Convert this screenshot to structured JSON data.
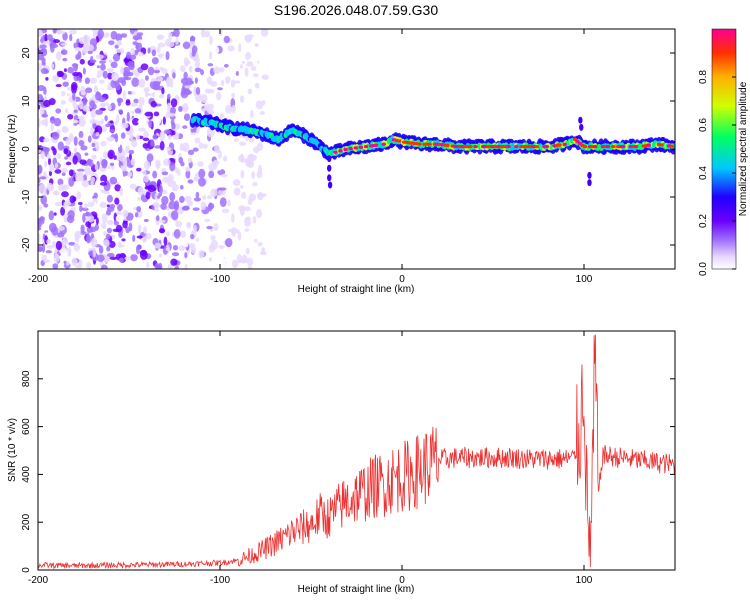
{
  "title": "S196.2026.048.07.59.G30",
  "chart_data": [
    {
      "type": "heatmap",
      "title": "S196.2026.048.07.59.G30",
      "xlabel": "Height of straight line (km)",
      "ylabel": "Frequency (Hz)",
      "xlim": [
        -200,
        150
      ],
      "ylim": [
        -25,
        25
      ],
      "xticks": [
        -200,
        -100,
        0,
        100
      ],
      "xtick_labels": [
        "-200",
        "-100",
        "0",
        "100"
      ],
      "yticks": [
        -20,
        -10,
        0,
        10,
        20
      ],
      "ytick_labels": [
        "-20",
        "-10",
        "0",
        "10",
        "20"
      ],
      "colorbar": {
        "label": "Normalized spectral amplitude",
        "range": [
          0,
          1
        ],
        "ticks": [
          0.0,
          0.2,
          0.4,
          0.6,
          0.8
        ],
        "tick_labels": [
          "0.0",
          "0.2",
          "0.4",
          "0.6",
          "0.8"
        ],
        "colors": [
          "#ffffff",
          "#e8d8ff",
          "#a070ff",
          "#6a00ff",
          "#2000ff",
          "#00c8ff",
          "#00ff60",
          "#d0ff00",
          "#ffb000",
          "#ff3000",
          "#ff0090"
        ]
      },
      "ridge": {
        "description": "dominant frequency (Hz) vs height (km)",
        "x": [
          -115,
          -105,
          -95,
          -85,
          -75,
          -68,
          -60,
          -55,
          -50,
          -45,
          -40,
          -35,
          -30,
          -20,
          -10,
          -5,
          0,
          10,
          20,
          30,
          40,
          50,
          60,
          70,
          80,
          90,
          95,
          100,
          105,
          110,
          120,
          130,
          140,
          150
        ],
        "y": [
          6,
          5.5,
          4.5,
          4,
          3,
          2,
          4,
          3,
          2,
          0.5,
          -1,
          -0.5,
          0,
          0.5,
          1,
          2,
          1.5,
          1,
          1,
          0.5,
          0.5,
          0.5,
          0.5,
          0.5,
          0.5,
          1,
          2,
          0.5,
          0.5,
          0.5,
          0.5,
          0.5,
          1,
          0.5
        ]
      },
      "noise_region_x": [
        -200,
        -85
      ]
    },
    {
      "type": "line",
      "xlabel": "Height of straight line (km)",
      "ylabel": "SNR (10 * v/v)",
      "xlim": [
        -200,
        150
      ],
      "ylim": [
        0,
        1000
      ],
      "xticks": [
        -200,
        -100,
        0,
        100
      ],
      "xtick_labels": [
        "-200",
        "-100",
        "0",
        "100"
      ],
      "yticks": [
        0,
        200,
        400,
        600,
        800
      ],
      "ytick_labels": [
        "0",
        "200",
        "400",
        "600",
        "800"
      ],
      "color": "#ee3030",
      "series": [
        {
          "name": "SNR",
          "x": [
            -200,
            -180,
            -160,
            -140,
            -120,
            -100,
            -90,
            -80,
            -70,
            -60,
            -50,
            -45,
            -40,
            -35,
            -30,
            -25,
            -20,
            -15,
            -10,
            -5,
            0,
            5,
            10,
            20,
            30,
            40,
            50,
            60,
            70,
            80,
            90,
            95,
            98,
            100,
            102,
            104,
            106,
            108,
            110,
            120,
            130,
            140,
            150
          ],
          "values": [
            20,
            18,
            20,
            22,
            25,
            30,
            40,
            70,
            110,
            160,
            190,
            230,
            220,
            260,
            290,
            310,
            330,
            350,
            360,
            380,
            390,
            400,
            420,
            460,
            470,
            470,
            470,
            470,
            465,
            465,
            465,
            470,
            600,
            820,
            120,
            150,
            900,
            300,
            480,
            470,
            460,
            450,
            440
          ]
        }
      ]
    }
  ]
}
